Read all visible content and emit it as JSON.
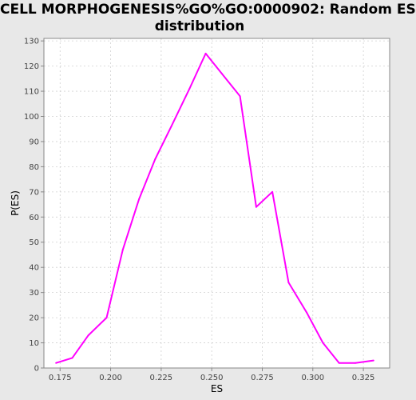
{
  "chart_data": {
    "type": "line",
    "title_lines": [
      "CELL MORPHOGENESIS%GO%GO:0000902: Random ES",
      "distribution"
    ],
    "xlabel": "ES",
    "ylabel": "P(ES)",
    "xlim": [
      0.167,
      0.338
    ],
    "ylim": [
      0,
      131
    ],
    "x_ticks": [
      0.175,
      0.2,
      0.225,
      0.25,
      0.275,
      0.3,
      0.325
    ],
    "x_tick_labels": [
      "0.175",
      "0.200",
      "0.225",
      "0.250",
      "0.275",
      "0.300",
      "0.325"
    ],
    "y_ticks": [
      0,
      10,
      20,
      30,
      40,
      50,
      60,
      70,
      80,
      90,
      100,
      110,
      120,
      130
    ],
    "y_tick_labels": [
      "0",
      "10",
      "20",
      "30",
      "40",
      "50",
      "60",
      "70",
      "80",
      "90",
      "100",
      "110",
      "120",
      "130"
    ],
    "grid": true,
    "series": [
      {
        "color": "#ff00ff",
        "x": [
          0.173,
          0.181,
          0.189,
          0.198,
          0.206,
          0.214,
          0.222,
          0.23,
          0.239,
          0.247,
          0.255,
          0.264,
          0.272,
          0.28,
          0.288,
          0.297,
          0.305,
          0.313,
          0.321,
          0.33
        ],
        "y": [
          2,
          4,
          13,
          20,
          47,
          67,
          83,
          96,
          111,
          125,
          117,
          108,
          64,
          70,
          34,
          22,
          10,
          2,
          2,
          3
        ]
      }
    ]
  }
}
